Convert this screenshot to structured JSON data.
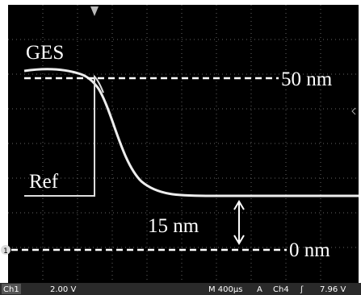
{
  "traces": {
    "top": "GES",
    "bottom": "Ref"
  },
  "levels": {
    "high": "50 nm",
    "low": "0 nm",
    "gap": "15 nm"
  },
  "markers": {
    "channel": "1"
  },
  "status_bar": {
    "channel": "Ch1",
    "scale": "2.00 V",
    "timebase": "M 400µs",
    "mode": "A",
    "trigger_source": "Ch4",
    "slope": "ʃ",
    "trigger_level": "7.96 V"
  }
}
